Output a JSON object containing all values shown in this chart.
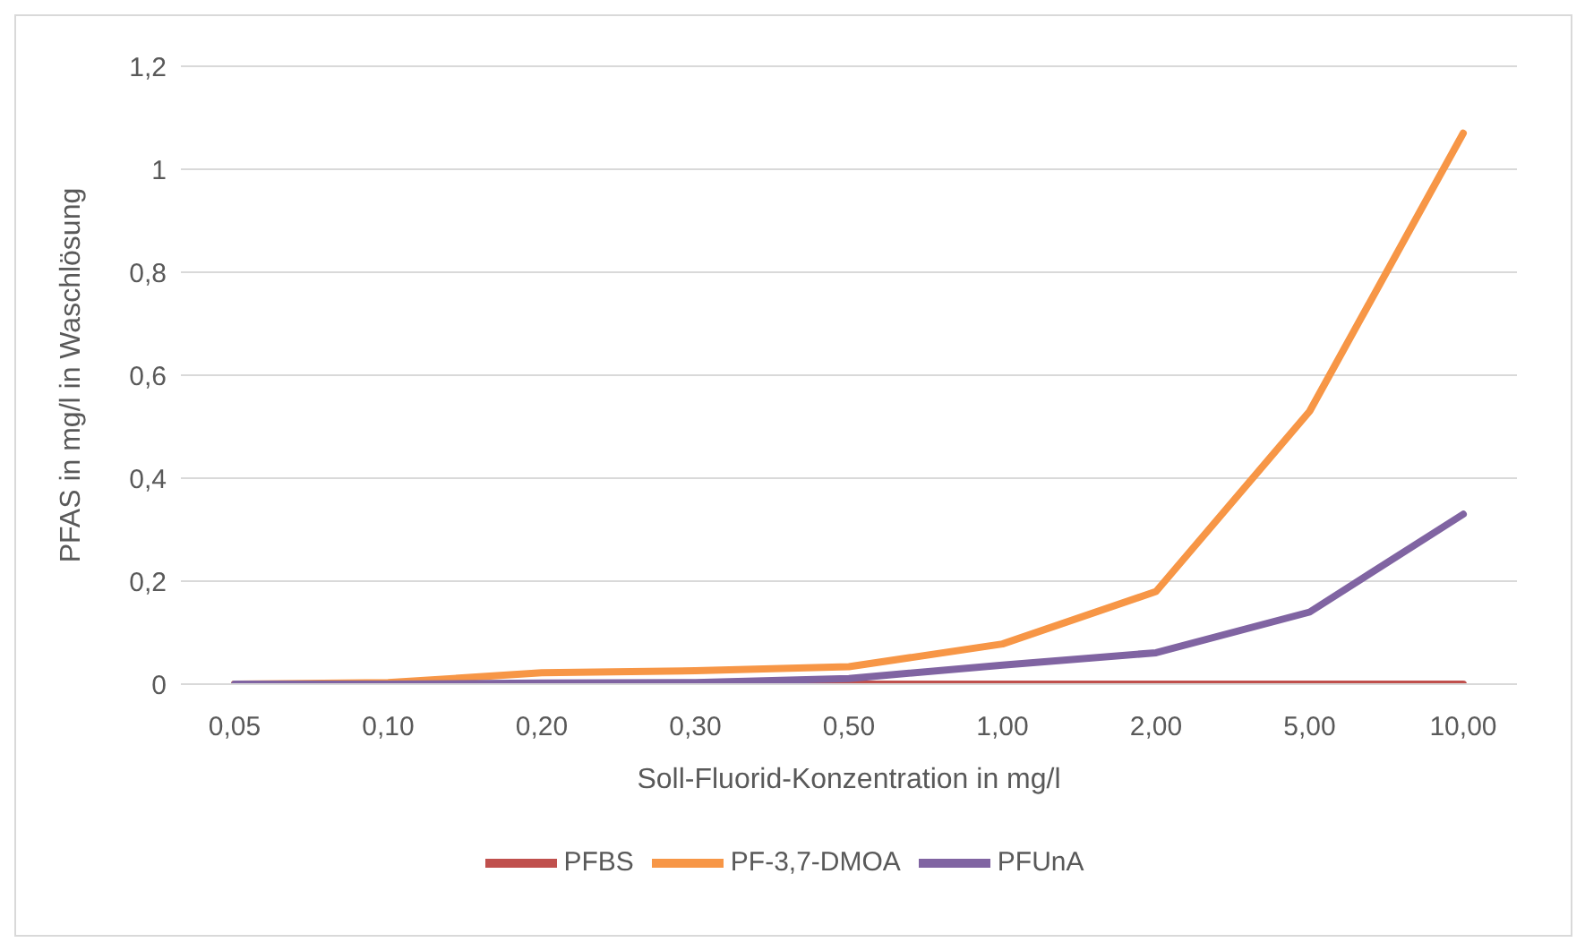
{
  "chart_data": {
    "type": "line",
    "xlabel": "Soll-Fluorid-Konzentration in mg/l",
    "ylabel": "PFAS in mg/l  in Waschlösung",
    "categories": [
      "0,05",
      "0,10",
      "0,20",
      "0,30",
      "0,50",
      "1,00",
      "2,00",
      "5,00",
      "10,00"
    ],
    "series": [
      {
        "name": "PFBS",
        "color": "#c0504d",
        "values": [
          0,
          0,
          0,
          0,
          0,
          0,
          0,
          0,
          0
        ]
      },
      {
        "name": "PF-3,7-DMOA",
        "color": "#f79646",
        "values": [
          0,
          0.003,
          0.022,
          0.026,
          0.034,
          0.078,
          0.18,
          0.53,
          1.07
        ]
      },
      {
        "name": "PFUnA",
        "color": "#8064a2",
        "values": [
          0,
          0,
          0.002,
          0.003,
          0.011,
          0.037,
          0.061,
          0.14,
          0.33
        ]
      }
    ],
    "ylim": [
      0,
      1.2
    ],
    "yticks": [
      0,
      {
        "value": 0.2,
        "label": "0,2"
      },
      {
        "value": 0.4,
        "label": "0,4"
      },
      {
        "value": 0.6,
        "label": "0,6"
      },
      {
        "value": 0.8,
        "label": "0,8"
      },
      1,
      {
        "value": 1.2,
        "label": "1,2"
      }
    ],
    "grid": "y",
    "legend": "bottom",
    "marker": "none",
    "line_style": "solid"
  }
}
